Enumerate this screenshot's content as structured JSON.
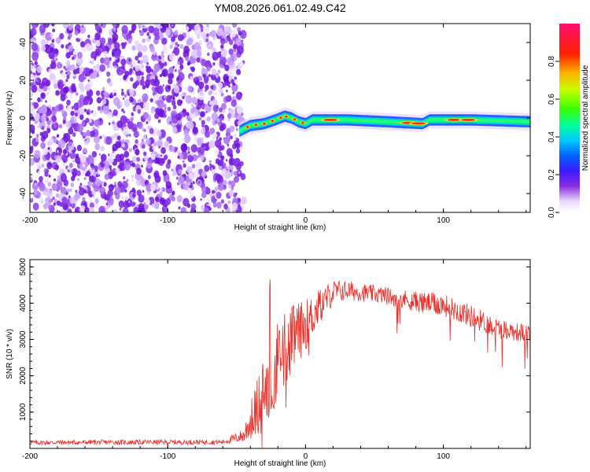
{
  "title": "YM08.2026.061.02.49.C42",
  "chart_data": [
    {
      "type": "heatmap",
      "title": "YM08.2026.061.02.49.C42",
      "xlabel": "Height of straight line (km)",
      "ylabel": "Frequency (Hz)",
      "xlim": [
        -200,
        163
      ],
      "ylim": [
        -50,
        50
      ],
      "xticks": [
        -200,
        -100,
        0,
        100
      ],
      "yticks": [
        -40,
        -20,
        0,
        20,
        40
      ],
      "colorbar": {
        "label": "Normalized spectral amplitude",
        "range": [
          0,
          1
        ],
        "ticks": [
          0.0,
          0.2,
          0.4,
          0.6,
          0.8
        ]
      },
      "regions": [
        {
          "name": "noise",
          "x_range": [
            -200,
            -48
          ],
          "freq_range": [
            -50,
            50
          ],
          "amplitude": "0.0-0.2"
        },
        {
          "name": "signal-band",
          "x_range": [
            -48,
            163
          ],
          "center_freq_hz": -2,
          "half_width_hz": 3,
          "amplitude": "0.2-1.0"
        }
      ],
      "signal_track": [
        {
          "x": -48,
          "freq": -7
        },
        {
          "x": -40,
          "freq": -4
        },
        {
          "x": -30,
          "freq": -3
        },
        {
          "x": -22,
          "freq": -1
        },
        {
          "x": -15,
          "freq": 1
        },
        {
          "x": -10,
          "freq": 0
        },
        {
          "x": -5,
          "freq": -2
        },
        {
          "x": 0,
          "freq": -3
        },
        {
          "x": 5,
          "freq": -1
        },
        {
          "x": 30,
          "freq": -1
        },
        {
          "x": 60,
          "freq": -2
        },
        {
          "x": 85,
          "freq": -3
        },
        {
          "x": 90,
          "freq": -1
        },
        {
          "x": 120,
          "freq": -1
        },
        {
          "x": 163,
          "freq": -2
        }
      ]
    },
    {
      "type": "line",
      "xlabel": "Height of straight line (km)",
      "ylabel": "SNR (10 * v/v)",
      "xlim": [
        -200,
        163
      ],
      "ylim": [
        0,
        5200
      ],
      "xticks": [
        -200,
        -100,
        0,
        100
      ],
      "yticks": [
        1000,
        2000,
        3000,
        4000,
        5000
      ],
      "series": [
        {
          "name": "SNR",
          "color": "#e8302a",
          "x": [
            -200,
            -150,
            -100,
            -60,
            -45,
            -38,
            -30,
            -20,
            -10,
            0,
            10,
            20,
            30,
            40,
            60,
            80,
            100,
            120,
            140,
            163
          ],
          "values": [
            160,
            170,
            170,
            175,
            350,
            900,
            1600,
            2400,
            3000,
            3400,
            3900,
            4300,
            4350,
            4300,
            4200,
            4050,
            3950,
            3650,
            3300,
            3150
          ],
          "noise_band": [
            150,
            150,
            150,
            150,
            400,
            900,
            1500,
            1600,
            1400,
            1000,
            700,
            500,
            400,
            350,
            350,
            400,
            450,
            450,
            400,
            350
          ]
        }
      ]
    }
  ]
}
